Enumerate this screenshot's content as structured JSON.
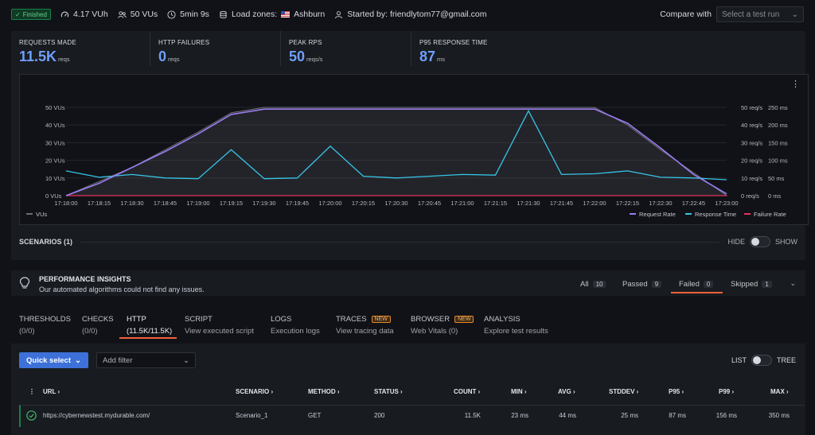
{
  "topbar": {
    "status": "Finished",
    "vuh": "4.17 VUh",
    "vus": "50 VUs",
    "duration": "5min 9s",
    "load_zones_label": "Load zones:",
    "load_zone": "Ashburn",
    "started_by": "Started by: friendlytom77@gmail.com",
    "compare_label": "Compare with",
    "compare_placeholder": "Select a test run"
  },
  "stats": [
    {
      "label": "REQUESTS MADE",
      "value": "11.5K",
      "unit": "reqs"
    },
    {
      "label": "HTTP FAILURES",
      "value": "0",
      "unit": "reqs"
    },
    {
      "label": "PEAK RPS",
      "value": "50",
      "unit": "reqs/s"
    },
    {
      "label": "P95 RESPONSE TIME",
      "value": "87",
      "unit": "ms"
    }
  ],
  "chart_data": {
    "type": "line",
    "x": [
      "17:18:00",
      "17:18:15",
      "17:18:30",
      "17:18:45",
      "17:19:00",
      "17:19:15",
      "17:19:30",
      "17:19:45",
      "17:20:00",
      "17:20:15",
      "17:20:30",
      "17:20:45",
      "17:21:00",
      "17:21:15",
      "17:21:30",
      "17:21:45",
      "17:22:00",
      "17:22:15",
      "17:22:30",
      "17:22:45",
      "17:23:00"
    ],
    "y_left_ticks": [
      "0 VUs",
      "10 VUs",
      "20 VUs",
      "30 VUs",
      "40 VUs",
      "50 VUs"
    ],
    "y_right_rps_ticks": [
      "0 req/s",
      "10 req/s",
      "20 req/s",
      "30 req/s",
      "40 req/s",
      "50 req/s"
    ],
    "y_right_ms_ticks": [
      "0 ms",
      "50 ms",
      "100 ms",
      "150 ms",
      "200 ms",
      "250 ms"
    ],
    "ylim_vus": [
      0,
      50
    ],
    "ylim_rps": [
      0,
      50
    ],
    "ylim_ms": [
      0,
      250
    ],
    "colors": {
      "vus": "#6c6c74",
      "request_rate": "#9b7cf0",
      "response_time": "#36c5e8",
      "failure_rate": "#e8305d"
    },
    "series": [
      {
        "name": "VUs",
        "values": [
          0,
          8,
          16,
          26,
          36,
          47,
          50,
          50,
          50,
          50,
          50,
          50,
          50,
          50,
          50,
          50,
          50,
          40,
          26,
          13,
          0
        ]
      },
      {
        "name": "Request Rate",
        "values": [
          0,
          7,
          16,
          25,
          35,
          46,
          49,
          49,
          49,
          49,
          49,
          49,
          49,
          49,
          49,
          49,
          49,
          41,
          27,
          12,
          1
        ]
      },
      {
        "name": "Response Time",
        "values": [
          70,
          52,
          60,
          50,
          48,
          130,
          48,
          50,
          140,
          55,
          50,
          55,
          60,
          58,
          240,
          60,
          62,
          70,
          52,
          50,
          45
        ]
      },
      {
        "name": "Failure Rate",
        "values": [
          0,
          0,
          0,
          0,
          0,
          0,
          0,
          0,
          0,
          0,
          0,
          0,
          0,
          0,
          0,
          0,
          0,
          0,
          0,
          0,
          0
        ]
      }
    ],
    "legend_left": [
      "VUs"
    ],
    "legend_right": [
      "Request Rate",
      "Response Time",
      "Failure Rate"
    ]
  },
  "scenarios": {
    "label": "SCENARIOS (1)",
    "hide": "HIDE",
    "show": "SHOW"
  },
  "insights": {
    "title": "PERFORMANCE INSIGHTS",
    "desc": "Our automated algorithms could not find any issues.",
    "tabs": [
      {
        "label": "All",
        "count": "10"
      },
      {
        "label": "Passed",
        "count": "9"
      },
      {
        "label": "Failed",
        "count": "0"
      },
      {
        "label": "Skipped",
        "count": "1"
      }
    ]
  },
  "tabs": [
    {
      "title": "THRESHOLDS",
      "sub": "(0/0)"
    },
    {
      "title": "CHECKS",
      "sub": "(0/0)"
    },
    {
      "title": "HTTP",
      "sub": "(11.5K/11.5K)"
    },
    {
      "title": "SCRIPT",
      "sub": "View executed script"
    },
    {
      "title": "LOGS",
      "sub": "Execution logs"
    },
    {
      "title": "TRACES",
      "sub": "View tracing data",
      "badge": "NEW"
    },
    {
      "title": "BROWSER",
      "sub": "Web Vitals (0)",
      "badge": "NEW"
    },
    {
      "title": "ANALYSIS",
      "sub": "Explore test results"
    }
  ],
  "table": {
    "quick_select": "Quick select",
    "add_filter": "Add filter",
    "list": "LIST",
    "tree": "TREE",
    "headers": [
      "URL",
      "SCENARIO",
      "METHOD",
      "STATUS",
      "COUNT",
      "MIN",
      "AVG",
      "STDDEV",
      "P95",
      "P99",
      "MAX"
    ],
    "rows": [
      [
        "https://cybernewstest.mydurable.com/",
        "Scenario_1",
        "GET",
        "200",
        "11.5K",
        "23 ms",
        "44 ms",
        "25 ms",
        "87 ms",
        "156 ms",
        "350 ms"
      ]
    ]
  }
}
